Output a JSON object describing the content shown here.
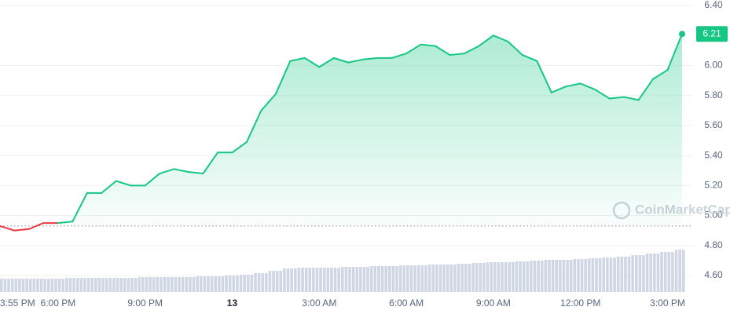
{
  "chart_data": {
    "type": "line",
    "categories": [
      "3:55 PM",
      null,
      null,
      null,
      "6:00 PM",
      null,
      null,
      null,
      null,
      null,
      "9:00 PM",
      null,
      null,
      null,
      null,
      null,
      "13",
      null,
      null,
      null,
      null,
      null,
      "3:00 AM",
      null,
      null,
      null,
      null,
      null,
      "6:00 AM",
      null,
      null,
      null,
      null,
      null,
      "9:00 AM",
      null,
      null,
      null,
      null,
      null,
      "12:00 PM",
      null,
      null,
      null,
      null,
      null,
      "3:00 PM",
      null
    ],
    "values": [
      4.93,
      4.9,
      4.91,
      4.95,
      4.95,
      4.96,
      5.15,
      5.15,
      5.23,
      5.2,
      5.2,
      5.28,
      5.31,
      5.29,
      5.28,
      5.42,
      5.42,
      5.49,
      5.7,
      5.81,
      6.03,
      6.05,
      5.99,
      6.05,
      6.02,
      6.04,
      6.05,
      6.05,
      6.08,
      6.14,
      6.13,
      6.07,
      6.08,
      6.13,
      6.2,
      6.16,
      6.07,
      6.03,
      5.82,
      5.86,
      5.88,
      5.84,
      5.78,
      5.79,
      5.77,
      5.91,
      5.97,
      6.21
    ],
    "volume": [
      17,
      17,
      17,
      17,
      17,
      18,
      18,
      18,
      18,
      18,
      19,
      19,
      19,
      19,
      20,
      20,
      21,
      22,
      24,
      27,
      30,
      31,
      31,
      31,
      32,
      32,
      33,
      33,
      34,
      34,
      35,
      35,
      36,
      37,
      38,
      38,
      39,
      40,
      41,
      41,
      42,
      43,
      44,
      45,
      47,
      49,
      51,
      54
    ],
    "vlim": [
      0,
      100
    ],
    "baseline": 4.93,
    "current_label": "6.21",
    "watermark": "CoinMarketCap",
    "color_up": "#16c784",
    "color_down": "#ea3943",
    "volume_color": "#cfd6e4",
    "ylim": [
      4.6,
      6.4
    ],
    "yticks": [
      {
        "value": 4.6,
        "label": "4.60"
      },
      {
        "value": 4.8,
        "label": "4.80"
      },
      {
        "value": 5.0,
        "label": "5.00"
      },
      {
        "value": 5.2,
        "label": "5.20"
      },
      {
        "value": 5.4,
        "label": "5.40"
      },
      {
        "value": 5.6,
        "label": "5.60"
      },
      {
        "value": 5.8,
        "label": "5.80"
      },
      {
        "value": 6.0,
        "label": "6.00"
      },
      {
        "value": 6.4,
        "label": "6.40"
      }
    ],
    "grid": true
  }
}
